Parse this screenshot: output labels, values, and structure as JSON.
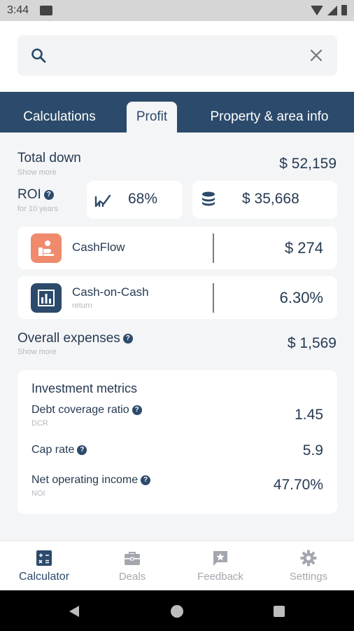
{
  "status_bar": {
    "time": "3:44"
  },
  "search": {
    "placeholder": ""
  },
  "tabs": [
    {
      "label": "Calculations"
    },
    {
      "label": "Profit"
    },
    {
      "label": "Property & area info"
    }
  ],
  "summary": {
    "total_down": {
      "label": "Total down",
      "sub": "Show more",
      "value": "$ 52,159"
    },
    "roi": {
      "label": "ROI",
      "sub": "for 10 years",
      "percent": "68%",
      "amount": "$ 35,668"
    },
    "cashflow": {
      "label": "CashFlow",
      "value": "$ 274"
    },
    "cash_on_cash": {
      "label": "Cash-on-Cash",
      "sub": "return",
      "value": "6.30%"
    },
    "overall_expenses": {
      "label": "Overall expenses",
      "sub": "Show more",
      "value": "$ 1,569"
    }
  },
  "metrics": {
    "title": "Investment metrics",
    "items": [
      {
        "label": "Debt coverage ratio",
        "sub": "DCR",
        "value": "1.45"
      },
      {
        "label": "Cap rate",
        "sub": "",
        "value": "5.9"
      },
      {
        "label": "Net operating income",
        "sub": "NOI",
        "value": "47.70%"
      }
    ]
  },
  "bottom_nav": [
    {
      "label": "Calculator",
      "icon": "calculator-icon"
    },
    {
      "label": "Deals",
      "icon": "briefcase-icon"
    },
    {
      "label": "Feedback",
      "icon": "feedback-icon"
    },
    {
      "label": "Settings",
      "icon": "gear-icon"
    }
  ],
  "colors": {
    "primary": "#2c4a6b",
    "cashflow_icon_bg": "#f08a6c",
    "background": "#f4f5f7"
  }
}
